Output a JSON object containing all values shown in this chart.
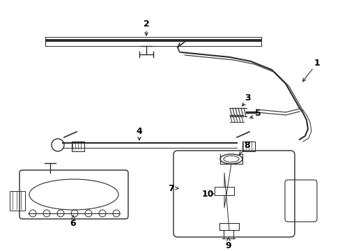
{
  "bg_color": "#ffffff",
  "lc": "#2a2a2a",
  "fig_width": 4.89,
  "fig_height": 3.6,
  "dpi": 100,
  "xlim": [
    0,
    489
  ],
  "ylim": [
    0,
    360
  ]
}
